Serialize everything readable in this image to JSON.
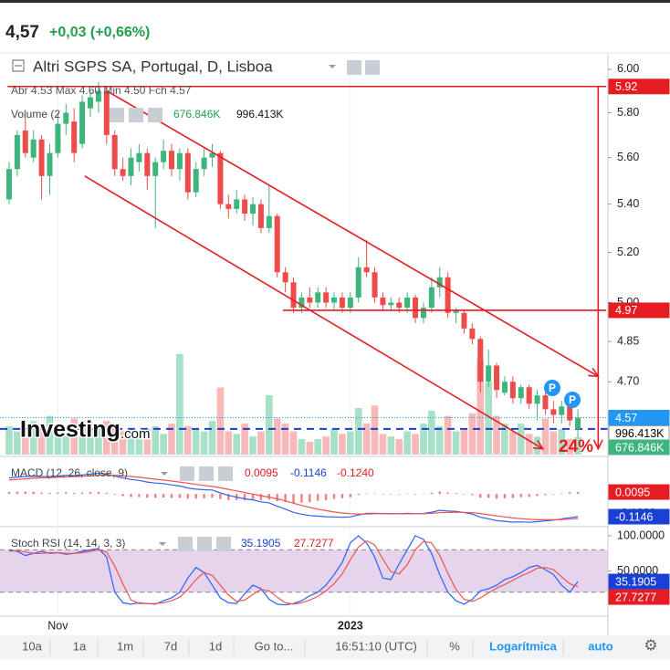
{
  "header": {
    "price": "4,57",
    "change": "+0,03 (+0,66%)"
  },
  "watermark": {
    "brand": "Investing",
    "suffix": ".com"
  },
  "markers": [
    "P",
    "P"
  ],
  "toolbar": [
    "10a",
    "1a",
    "1m",
    "7d",
    "1d",
    "Go to...",
    "16:51:10 (UTC)",
    "%",
    "Logarítmica",
    "auto"
  ],
  "chart_data": [
    {
      "type": "candlestick",
      "title": "Altri SGPS SA, Portugal, D, Lisboa",
      "ohlc_readout": "Abr 4.53 Max 4.60 Min 4.50 Fch 4.57",
      "volume_title": "Volume (2",
      "volume_readouts": [
        "676.846K",
        "996.413K"
      ],
      "log_scale": true,
      "ylim": [
        4.44,
        6.06
      ],
      "xlim": [
        -0.56,
        73.7
      ],
      "yticks": [
        {
          "value": 6,
          "label": "6.00"
        },
        {
          "value": 5.8,
          "label": "5.80"
        },
        {
          "value": 5.6,
          "label": "5.60"
        },
        {
          "value": 5.4,
          "label": "5.40"
        },
        {
          "value": 5.2,
          "label": "5.20"
        },
        {
          "value": 5,
          "label": "5.00"
        },
        {
          "value": 4.85,
          "label": "4.85"
        },
        {
          "value": 4.7,
          "label": "4.70"
        }
      ],
      "xticks": [
        {
          "value": 6,
          "label": "Nov"
        },
        {
          "value": 42,
          "label": "2023"
        }
      ],
      "up_color": "#3fb47c",
      "down_color": "#ee4b4b",
      "volume_up_color": "#a6e0c6",
      "volume_down_color": "#f8b8b8",
      "open": [
        5.42,
        5.55,
        5.72,
        5.6,
        5.68,
        5.52,
        5.62,
        5.75,
        5.76,
        5.66,
        5.82,
        5.85,
        5.9,
        5.7,
        5.55,
        5.52,
        5.58,
        5.62,
        5.52,
        5.58,
        5.63,
        5.55,
        5.62,
        5.45,
        5.55,
        5.6,
        5.62,
        5.4,
        5.38,
        5.42,
        5.36,
        5.4,
        5.3,
        5.35,
        5.12,
        5.08,
        4.98,
        5.02,
        5.0,
        5.04,
        5.0,
        5.02,
        4.98,
        5.02,
        5.14,
        5.12,
        5.02,
        4.99,
        5.0,
        4.98,
        5.02,
        4.94,
        4.98,
        5.06,
        5.1,
        4.96,
        4.96,
        4.9,
        4.86,
        4.7,
        4.76,
        4.66,
        4.7,
        4.64,
        4.68,
        4.62,
        4.65,
        4.6,
        4.58,
        4.61,
        4.53
      ],
      "high": [
        5.58,
        5.72,
        5.78,
        5.72,
        5.7,
        5.66,
        5.8,
        5.84,
        5.82,
        5.88,
        5.9,
        5.94,
        5.92,
        5.72,
        5.6,
        5.64,
        5.66,
        5.64,
        5.6,
        5.68,
        5.66,
        5.64,
        5.64,
        5.58,
        5.64,
        5.66,
        5.63,
        5.44,
        5.46,
        5.44,
        5.43,
        5.42,
        5.48,
        5.36,
        5.14,
        5.1,
        5.04,
        5.06,
        5.06,
        5.06,
        5.04,
        5.04,
        5.04,
        5.18,
        5.25,
        5.14,
        5.04,
        5.02,
        5.02,
        5.04,
        5.03,
        5.0,
        5.1,
        5.14,
        5.12,
        4.98,
        4.97,
        4.92,
        4.87,
        4.82,
        4.77,
        4.72,
        4.72,
        4.69,
        4.69,
        4.67,
        4.66,
        4.63,
        4.63,
        4.62,
        4.6
      ],
      "low": [
        5.4,
        5.52,
        5.6,
        5.58,
        5.42,
        5.44,
        5.6,
        5.7,
        5.58,
        5.64,
        5.78,
        5.8,
        5.66,
        5.52,
        5.5,
        5.48,
        5.54,
        5.46,
        5.3,
        5.55,
        5.52,
        5.5,
        5.42,
        5.43,
        5.52,
        5.56,
        5.38,
        5.34,
        5.36,
        5.33,
        5.31,
        5.28,
        5.28,
        5.1,
        5.04,
        4.96,
        4.96,
        4.98,
        4.98,
        4.98,
        4.97,
        4.96,
        4.96,
        5.0,
        5.1,
        5.0,
        4.97,
        4.97,
        4.96,
        4.96,
        4.92,
        4.92,
        4.96,
        5.02,
        4.94,
        4.92,
        4.88,
        4.84,
        4.66,
        4.68,
        4.64,
        4.65,
        4.62,
        4.62,
        4.6,
        4.56,
        4.58,
        4.55,
        4.55,
        4.54,
        4.5
      ],
      "close": [
        5.55,
        5.7,
        5.62,
        5.68,
        5.52,
        5.62,
        5.75,
        5.8,
        5.62,
        5.85,
        5.87,
        5.9,
        5.7,
        5.55,
        5.52,
        5.6,
        5.62,
        5.52,
        5.58,
        5.63,
        5.55,
        5.62,
        5.45,
        5.55,
        5.6,
        5.62,
        5.4,
        5.38,
        5.42,
        5.36,
        5.4,
        5.3,
        5.35,
        5.12,
        5.08,
        4.98,
        5.02,
        5.0,
        5.04,
        5.0,
        5.02,
        4.98,
        5.02,
        5.14,
        5.12,
        5.02,
        4.99,
        5.0,
        4.98,
        5.02,
        4.94,
        4.98,
        5.06,
        5.1,
        4.96,
        4.97,
        4.9,
        4.86,
        4.7,
        4.76,
        4.67,
        4.7,
        4.64,
        4.68,
        4.62,
        4.65,
        4.6,
        4.58,
        4.61,
        4.56,
        4.57
      ],
      "volume_lim": [
        0,
        4600000
      ],
      "volume": [
        1100000,
        900000,
        700000,
        1300000,
        1200000,
        1500000,
        900000,
        800000,
        1400000,
        1100000,
        1000000,
        1200000,
        1300000,
        1100000,
        900000,
        1000000,
        800000,
        1000000,
        1100000,
        800000,
        1200000,
        3900000,
        1100000,
        1000000,
        900000,
        1300000,
        2600000,
        900000,
        800000,
        1200000,
        700000,
        900000,
        2300000,
        1400000,
        1200000,
        900000,
        600000,
        500000,
        600000,
        700000,
        1000000,
        800000,
        900000,
        1800000,
        1200000,
        1900000,
        800000,
        700000,
        600000,
        900000,
        800000,
        1200000,
        1700000,
        1100000,
        1500000,
        900000,
        1000000,
        1600000,
        3700000,
        2800000,
        1500000,
        1200000,
        900000,
        1200000,
        800000,
        700000,
        1400000,
        900000,
        1000000,
        600000,
        676846
      ],
      "volume_markers": [
        {
          "value": 996413,
          "label": "996.413K",
          "color": "#ffffff",
          "text_color": "#000000",
          "line": "#1a3fd6"
        },
        {
          "value": 676846,
          "label": "676.846K",
          "color": "#3fb47c",
          "text_color": "#ffffff"
        }
      ],
      "axis_markers": [
        {
          "value": 5.92,
          "label": "5.92",
          "color": "#e51c23"
        },
        {
          "value": 4.97,
          "label": "4.97",
          "color": "#e51c23"
        },
        {
          "value": 4.57,
          "label": "4.57",
          "color": "#2196f3"
        }
      ],
      "drawings_color": "#e51c23",
      "drawings": [
        {
          "x": [
            -0.2,
            73.5
          ],
          "y": [
            5.92,
            5.92
          ]
        },
        {
          "x": [
            33.7,
            73.5
          ],
          "y": [
            4.97,
            4.97
          ]
        },
        {
          "x": [
            12,
            72.5
          ],
          "y": [
            5.9,
            4.72
          ],
          "arrow": true
        },
        {
          "x": [
            9.3,
            65.7
          ],
          "y": [
            5.52,
            4.46
          ],
          "arrow": true
        },
        {
          "x": [
            72.5,
            72.5
          ],
          "y": [
            5.92,
            4.46
          ],
          "arrow": true
        }
      ],
      "annotation": "24%"
    },
    {
      "type": "macd",
      "title": "MACD (12, 26, close, 9)",
      "readouts": [
        "0.0095",
        "-0.1146",
        "-0.1240"
      ],
      "ylim": [
        -0.156,
        0.18
      ],
      "yticks": [
        {
          "value": -0.1,
          "label": "-0.1000"
        }
      ],
      "histogram": {
        "color": "#ef5350",
        "values": [
          0.01,
          0.012,
          0.012,
          0.011,
          0.007,
          0.005,
          0.006,
          0.008,
          0.005,
          0.007,
          0.009,
          0.01,
          0.005,
          -0.004,
          -0.011,
          -0.015,
          -0.016,
          -0.019,
          -0.019,
          -0.018,
          -0.02,
          -0.02,
          -0.024,
          -0.024,
          -0.022,
          -0.018,
          -0.026,
          -0.031,
          -0.031,
          -0.032,
          -0.029,
          -0.031,
          -0.029,
          -0.037,
          -0.042,
          -0.046,
          -0.044,
          -0.041,
          -0.035,
          -0.031,
          -0.025,
          -0.022,
          -0.016,
          -0.005,
          0.003,
          0.002,
          0.001,
          0.001,
          0,
          0.002,
          0,
          0.001,
          0.006,
          0.012,
          0.007,
          0.004,
          -0.001,
          -0.006,
          -0.019,
          -0.02,
          -0.024,
          -0.022,
          -0.021,
          -0.016,
          -0.015,
          -0.01,
          -0.006,
          -0.002,
          0.003,
          0.007,
          0.0095
        ]
      },
      "series": [
        {
          "color": "#2962ff",
          "values": [
            0.08,
            0.085,
            0.088,
            0.09,
            0.088,
            0.087,
            0.09,
            0.094,
            0.092,
            0.096,
            0.1,
            0.104,
            0.1,
            0.09,
            0.08,
            0.073,
            0.068,
            0.06,
            0.055,
            0.052,
            0.045,
            0.04,
            0.03,
            0.024,
            0.021,
            0.02,
            0.005,
            -0.008,
            -0.016,
            -0.025,
            -0.03,
            -0.04,
            -0.045,
            -0.062,
            -0.077,
            -0.093,
            -0.102,
            -0.109,
            -0.112,
            -0.115,
            -0.116,
            -0.118,
            -0.116,
            -0.106,
            -0.098,
            -0.098,
            -0.099,
            -0.099,
            -0.1,
            -0.098,
            -0.1,
            -0.099,
            -0.092,
            -0.083,
            -0.086,
            -0.088,
            -0.094,
            -0.101,
            -0.118,
            -0.125,
            -0.135,
            -0.138,
            -0.142,
            -0.141,
            -0.143,
            -0.14,
            -0.136,
            -0.132,
            -0.126,
            -0.12,
            -0.1146
          ]
        },
        {
          "color": "#ef5350",
          "values": [
            0.07,
            0.073,
            0.076,
            0.079,
            0.081,
            0.082,
            0.084,
            0.086,
            0.087,
            0.089,
            0.091,
            0.094,
            0.095,
            0.094,
            0.091,
            0.088,
            0.084,
            0.079,
            0.074,
            0.07,
            0.065,
            0.06,
            0.054,
            0.048,
            0.043,
            0.038,
            0.031,
            0.023,
            0.015,
            0.007,
            -0.001,
            -0.009,
            -0.016,
            -0.025,
            -0.035,
            -0.047,
            -0.058,
            -0.068,
            -0.077,
            -0.084,
            -0.091,
            -0.096,
            -0.1,
            -0.101,
            -0.101,
            -0.1,
            -0.1,
            -0.1,
            -0.1,
            -0.1,
            -0.1,
            -0.1,
            -0.098,
            -0.095,
            -0.093,
            -0.092,
            -0.093,
            -0.095,
            -0.099,
            -0.105,
            -0.111,
            -0.116,
            -0.121,
            -0.125,
            -0.128,
            -0.13,
            -0.13,
            -0.13,
            -0.129,
            -0.127,
            -0.124
          ]
        }
      ],
      "axis_markers": [
        {
          "value": 0.0095,
          "label": "0.0095",
          "color": "#e51c23"
        },
        {
          "value": -0.1146,
          "label": "-0.1146",
          "color": "#1a3fd6"
        }
      ]
    },
    {
      "type": "stoch",
      "title": "Stoch RSI (14, 14, 3, 3)",
      "readouts": [
        "35.1905",
        "27.7277"
      ],
      "ylim": [
        -10,
        109
      ],
      "yticks": [
        {
          "value": 100,
          "label": "100.0000"
        },
        {
          "value": 50,
          "label": "50.0000"
        }
      ],
      "bands": [
        20,
        80
      ],
      "band_color": "#e6d3ec",
      "series": [
        {
          "color": "#2962ff",
          "values": [
            80,
            78,
            72,
            75,
            78,
            75,
            76,
            74,
            75,
            78,
            80,
            82,
            70,
            20,
            5,
            3,
            5,
            4,
            3,
            8,
            12,
            20,
            40,
            55,
            48,
            30,
            12,
            5,
            4,
            18,
            30,
            25,
            10,
            3,
            2,
            4,
            8,
            15,
            20,
            30,
            45,
            62,
            90,
            100,
            90,
            70,
            40,
            38,
            60,
            80,
            100,
            95,
            75,
            45,
            20,
            8,
            3,
            10,
            22,
            25,
            30,
            38,
            42,
            48,
            55,
            58,
            52,
            45,
            30,
            20,
            35.1905
          ]
        },
        {
          "color": "#ef5350",
          "values": [
            78,
            79,
            77,
            75,
            75,
            76,
            76,
            75,
            75,
            76,
            78,
            80,
            77,
            57,
            32,
            9,
            4,
            4,
            4,
            5,
            8,
            13,
            24,
            38,
            48,
            44,
            30,
            16,
            7,
            9,
            17,
            24,
            22,
            13,
            5,
            3,
            5,
            9,
            14,
            22,
            32,
            46,
            66,
            84,
            93,
            87,
            67,
            49,
            46,
            59,
            80,
            92,
            90,
            72,
            47,
            24,
            10,
            7,
            12,
            19,
            26,
            31,
            37,
            43,
            48,
            54,
            55,
            52,
            42,
            32,
            27.7277
          ]
        }
      ],
      "axis_markers": [
        {
          "value": 35.1905,
          "label": "35.1905",
          "color": "#1a3fd6"
        },
        {
          "value": 27.7277,
          "label": "27.7277",
          "color": "#e51c23"
        }
      ]
    }
  ]
}
